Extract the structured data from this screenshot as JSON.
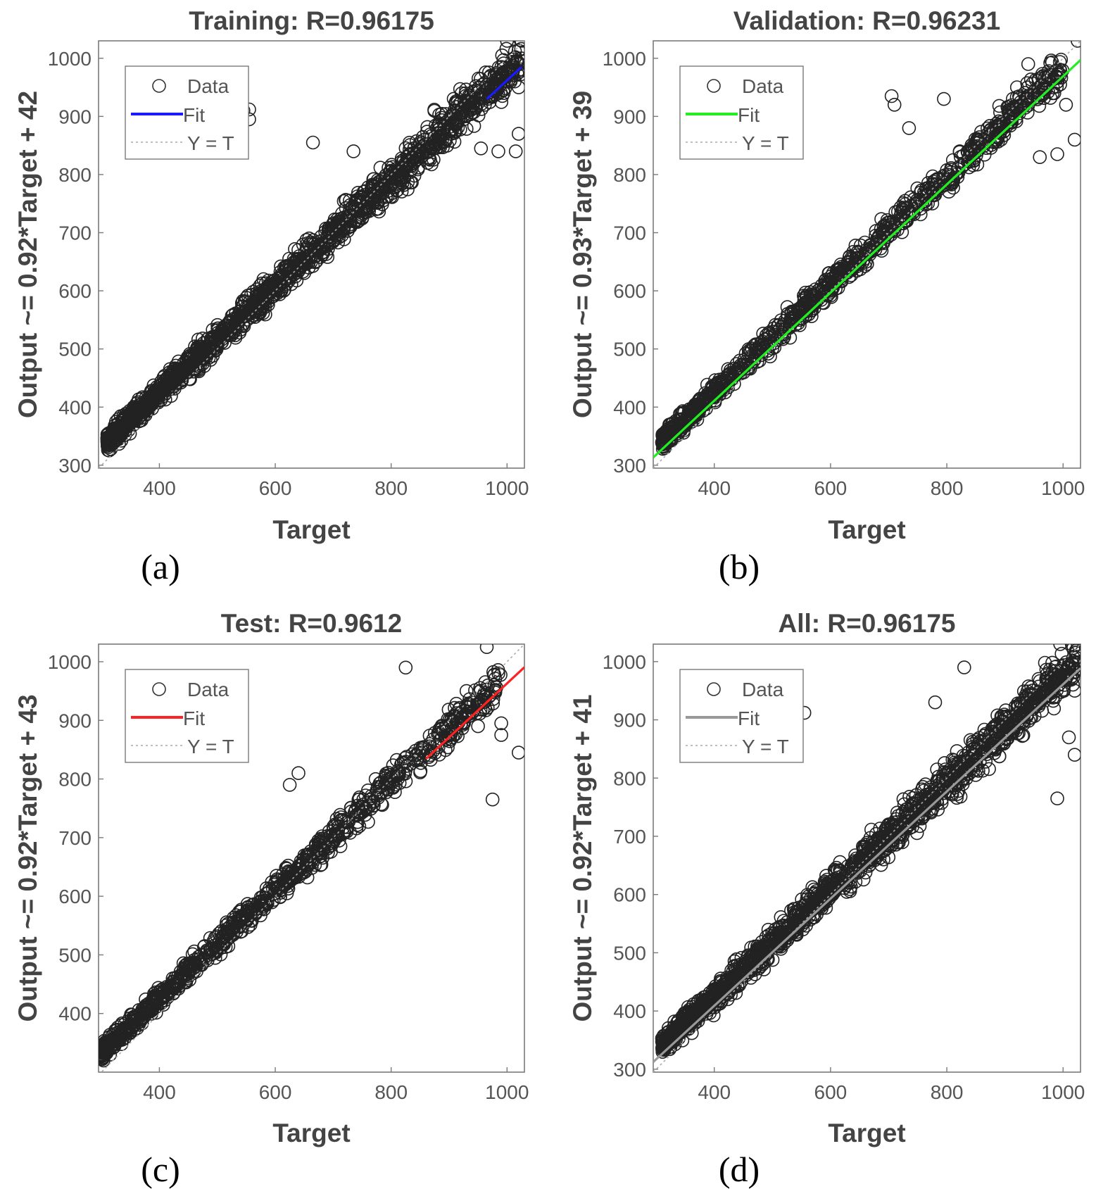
{
  "chart_data": [
    {
      "type": "scatter",
      "panel": "(a)",
      "title": "Training: R=0.96175",
      "xlabel": "Target",
      "ylabel": "Output ~= 0.92*Target + 42",
      "xlim": [
        295,
        1030
      ],
      "ylim": [
        295,
        1030
      ],
      "xticks": [
        400,
        600,
        800,
        1000
      ],
      "yticks": [
        300,
        400,
        500,
        600,
        700,
        800,
        900,
        1000
      ],
      "fit": {
        "slope": 0.92,
        "intercept": 42,
        "color": "#1a1aff",
        "visible_x": [
          965,
          1025
        ]
      },
      "legend": [
        "Data",
        "Fit",
        "Y = T"
      ],
      "legend_position": "top-left",
      "scatter": {
        "x_min": 310,
        "x_max": 1025,
        "spread": 42,
        "density": "high"
      },
      "outliers": [
        [
          535,
          920
        ],
        [
          545,
          910
        ],
        [
          555,
          912
        ],
        [
          555,
          895
        ],
        [
          665,
          855
        ],
        [
          735,
          840
        ],
        [
          955,
          845
        ],
        [
          985,
          840
        ],
        [
          1015,
          840
        ],
        [
          1020,
          870
        ],
        [
          1020,
          950
        ],
        [
          1000,
          1030
        ],
        [
          1025,
          1030
        ]
      ]
    },
    {
      "type": "scatter",
      "panel": "(b)",
      "title": "Validation: R=0.96231",
      "xlabel": "Target",
      "ylabel": "Output ~= 0.93*Target + 39",
      "xlim": [
        295,
        1030
      ],
      "ylim": [
        295,
        1030
      ],
      "xticks": [
        400,
        600,
        800,
        1000
      ],
      "yticks": [
        300,
        400,
        500,
        600,
        700,
        800,
        900,
        1000
      ],
      "fit": {
        "slope": 0.93,
        "intercept": 39,
        "color": "#22ee22",
        "visible_x": [
          295,
          1030
        ]
      },
      "legend": [
        "Data",
        "Fit",
        "Y = T"
      ],
      "legend_position": "top-left",
      "scatter": {
        "x_min": 310,
        "x_max": 1000,
        "spread": 35,
        "density": "medium"
      },
      "outliers": [
        [
          705,
          935
        ],
        [
          710,
          920
        ],
        [
          735,
          880
        ],
        [
          795,
          930
        ],
        [
          940,
          990
        ],
        [
          975,
          970
        ],
        [
          985,
          940
        ],
        [
          995,
          955
        ],
        [
          1005,
          920
        ],
        [
          1020,
          860
        ],
        [
          1025,
          1030
        ],
        [
          960,
          830
        ],
        [
          990,
          835
        ]
      ]
    },
    {
      "type": "scatter",
      "panel": "(c)",
      "title": "Test: R=0.9612",
      "xlabel": "Target",
      "ylabel": "Output ~= 0.92*Target + 43",
      "xlim": [
        295,
        1030
      ],
      "ylim": [
        300,
        1030
      ],
      "xticks": [
        400,
        600,
        800,
        1000
      ],
      "yticks": [
        400,
        500,
        600,
        700,
        800,
        900,
        1000
      ],
      "fit": {
        "slope": 0.92,
        "intercept": 43,
        "color": "#ff2222",
        "visible_x": [
          860,
          1030
        ]
      },
      "legend": [
        "Data",
        "Fit",
        "Y = T"
      ],
      "legend_position": "top-left",
      "scatter": {
        "x_min": 300,
        "x_max": 990,
        "spread": 35,
        "density": "medium"
      },
      "outliers": [
        [
          640,
          810
        ],
        [
          625,
          790
        ],
        [
          825,
          990
        ],
        [
          965,
          1025
        ],
        [
          985,
          980
        ],
        [
          990,
          895
        ],
        [
          990,
          875
        ],
        [
          1020,
          845
        ],
        [
          975,
          765
        ],
        [
          950,
          890
        ],
        [
          930,
          950
        ]
      ]
    },
    {
      "type": "scatter",
      "panel": "(d)",
      "title": "All: R=0.96175",
      "xlabel": "Target",
      "ylabel": "Output ~= 0.92*Target + 41",
      "xlim": [
        295,
        1030
      ],
      "ylim": [
        295,
        1030
      ],
      "xticks": [
        400,
        600,
        800,
        1000
      ],
      "yticks": [
        300,
        400,
        500,
        600,
        700,
        800,
        900,
        1000
      ],
      "fit": {
        "slope": 0.92,
        "intercept": 41,
        "color": "#999999",
        "visible_x": [
          295,
          1030
        ]
      },
      "legend": [
        "Data",
        "Fit",
        "Y = T"
      ],
      "legend_position": "top-left",
      "scatter": {
        "x_min": 310,
        "x_max": 1025,
        "spread": 42,
        "density": "high"
      },
      "outliers": [
        [
          535,
          920
        ],
        [
          555,
          912
        ],
        [
          830,
          990
        ],
        [
          780,
          930
        ],
        [
          1020,
          840
        ],
        [
          1010,
          870
        ],
        [
          990,
          765
        ],
        [
          995,
          1030
        ],
        [
          1015,
          1030
        ],
        [
          1025,
          1030
        ],
        [
          1020,
          950
        ]
      ]
    }
  ]
}
